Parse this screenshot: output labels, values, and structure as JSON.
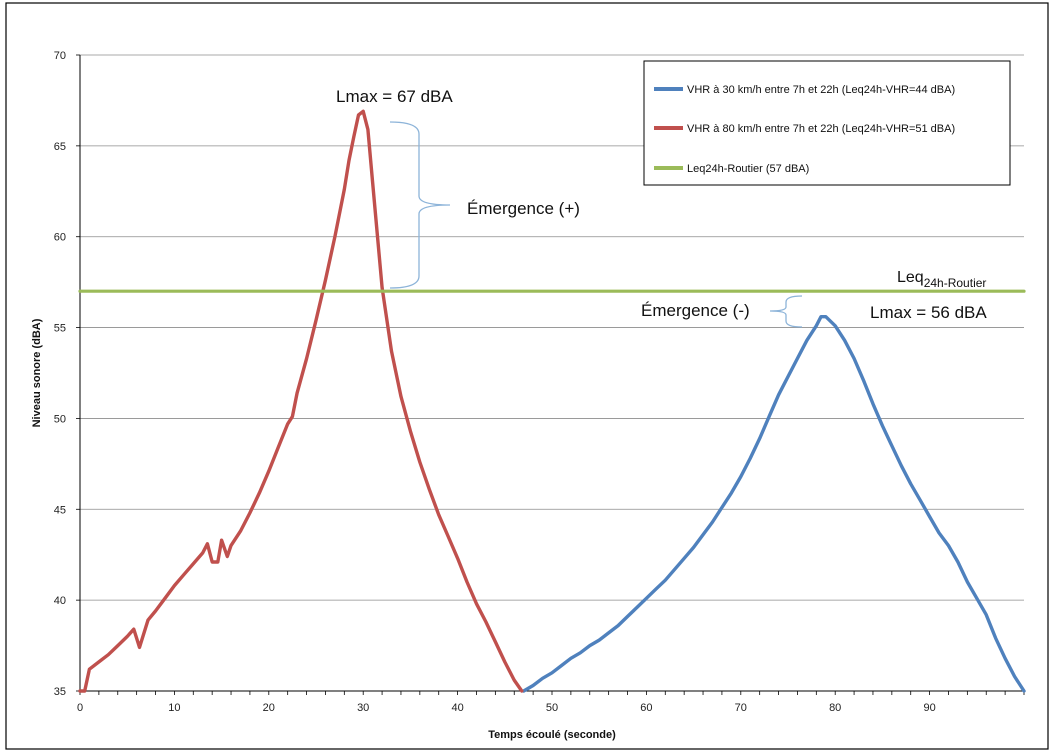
{
  "chart_data": {
    "type": "line",
    "xlabel": "Temps écoulé (seconde)",
    "ylabel": "Niveau sonore (dBA)",
    "xlim": [
      0,
      100
    ],
    "ylim": [
      35,
      70
    ],
    "x_ticks": [
      0,
      10,
      20,
      30,
      40,
      50,
      60,
      70,
      80,
      90
    ],
    "y_ticks": [
      35,
      40,
      45,
      50,
      55,
      60,
      65,
      70
    ],
    "grid": "horizontal",
    "legend_position": "top-right",
    "series": [
      {
        "name": "VHR à 30 km/h entre 7h et 22h (Leq24h-VHR=44 dBA)",
        "color": "#4f81bd",
        "points": [
          [
            47,
            35
          ],
          [
            48,
            35.3
          ],
          [
            49,
            35.7
          ],
          [
            50,
            36
          ],
          [
            51,
            36.4
          ],
          [
            52,
            36.8
          ],
          [
            53,
            37.1
          ],
          [
            54,
            37.5
          ],
          [
            55,
            37.8
          ],
          [
            56,
            38.2
          ],
          [
            57,
            38.6
          ],
          [
            58,
            39.1
          ],
          [
            59,
            39.6
          ],
          [
            60,
            40.1
          ],
          [
            61,
            40.6
          ],
          [
            62,
            41.1
          ],
          [
            63,
            41.7
          ],
          [
            64,
            42.3
          ],
          [
            65,
            42.9
          ],
          [
            66,
            43.6
          ],
          [
            67,
            44.3
          ],
          [
            68,
            45.1
          ],
          [
            69,
            45.9
          ],
          [
            70,
            46.8
          ],
          [
            71,
            47.8
          ],
          [
            72,
            48.9
          ],
          [
            73,
            50.1
          ],
          [
            74,
            51.3
          ],
          [
            75,
            52.3
          ],
          [
            76,
            53.3
          ],
          [
            77,
            54.3
          ],
          [
            78,
            55.1
          ],
          [
            78.5,
            55.6
          ],
          [
            79,
            55.6
          ],
          [
            80,
            55.1
          ],
          [
            81,
            54.3
          ],
          [
            82,
            53.3
          ],
          [
            83,
            52.1
          ],
          [
            84,
            50.8
          ],
          [
            85,
            49.6
          ],
          [
            86,
            48.5
          ],
          [
            87,
            47.4
          ],
          [
            88,
            46.4
          ],
          [
            89,
            45.5
          ],
          [
            90,
            44.6
          ],
          [
            91,
            43.7
          ],
          [
            92,
            43
          ],
          [
            93,
            42.1
          ],
          [
            94,
            41
          ],
          [
            95,
            40.1
          ],
          [
            96,
            39.2
          ],
          [
            97,
            37.9
          ],
          [
            98,
            36.8
          ],
          [
            99,
            35.8
          ],
          [
            100,
            35
          ]
        ]
      },
      {
        "name": "VHR à 80 km/h entre 7h et 22h (Leq24h-VHR=51 dBA)",
        "color": "#c0504d",
        "points": [
          [
            0,
            35
          ],
          [
            0.5,
            35
          ],
          [
            1,
            36.2
          ],
          [
            2,
            36.6
          ],
          [
            3,
            37
          ],
          [
            4,
            37.5
          ],
          [
            5,
            38
          ],
          [
            5.7,
            38.4
          ],
          [
            6.3,
            37.4
          ],
          [
            7.2,
            38.9
          ],
          [
            8,
            39.4
          ],
          [
            9,
            40.1
          ],
          [
            10,
            40.8
          ],
          [
            11,
            41.4
          ],
          [
            12,
            42
          ],
          [
            13,
            42.6
          ],
          [
            13.5,
            43.1
          ],
          [
            14,
            42.1
          ],
          [
            14.6,
            42.1
          ],
          [
            15,
            43.3
          ],
          [
            15.6,
            42.4
          ],
          [
            16,
            43
          ],
          [
            17,
            43.8
          ],
          [
            18,
            44.8
          ],
          [
            19,
            45.9
          ],
          [
            20,
            47.1
          ],
          [
            21,
            48.4
          ],
          [
            22,
            49.7
          ],
          [
            22.5,
            50.1
          ],
          [
            23,
            51.4
          ],
          [
            24,
            53.3
          ],
          [
            25,
            55.4
          ],
          [
            26,
            57.6
          ],
          [
            27,
            60
          ],
          [
            28,
            62.6
          ],
          [
            28.5,
            64.2
          ],
          [
            29,
            65.5
          ],
          [
            29.5,
            66.7
          ],
          [
            30,
            66.9
          ],
          [
            30.5,
            65.9
          ],
          [
            31,
            63
          ],
          [
            32,
            57.2
          ],
          [
            33,
            53.7
          ],
          [
            34,
            51.2
          ],
          [
            35,
            49.3
          ],
          [
            36,
            47.6
          ],
          [
            37,
            46.1
          ],
          [
            38,
            44.7
          ],
          [
            39,
            43.5
          ],
          [
            40,
            42.3
          ],
          [
            41,
            41
          ],
          [
            42,
            39.8
          ],
          [
            43,
            38.8
          ],
          [
            44,
            37.7
          ],
          [
            45,
            36.6
          ],
          [
            46,
            35.6
          ],
          [
            46.8,
            35
          ]
        ]
      },
      {
        "name": "Leq24h-Routier (57 dBA)",
        "color": "#9bbb59",
        "points": [
          [
            0,
            57
          ],
          [
            100,
            57
          ]
        ]
      }
    ],
    "annotations": {
      "lmax_80": "Lmax = 67 dBA",
      "lmax_30": "Lmax = 56 dBA",
      "emergence_pos": "Émergence (+)",
      "emergence_neg": "Émergence (-)",
      "leq_label_main": "Leq",
      "leq_label_sub": "24h-Routier"
    }
  }
}
